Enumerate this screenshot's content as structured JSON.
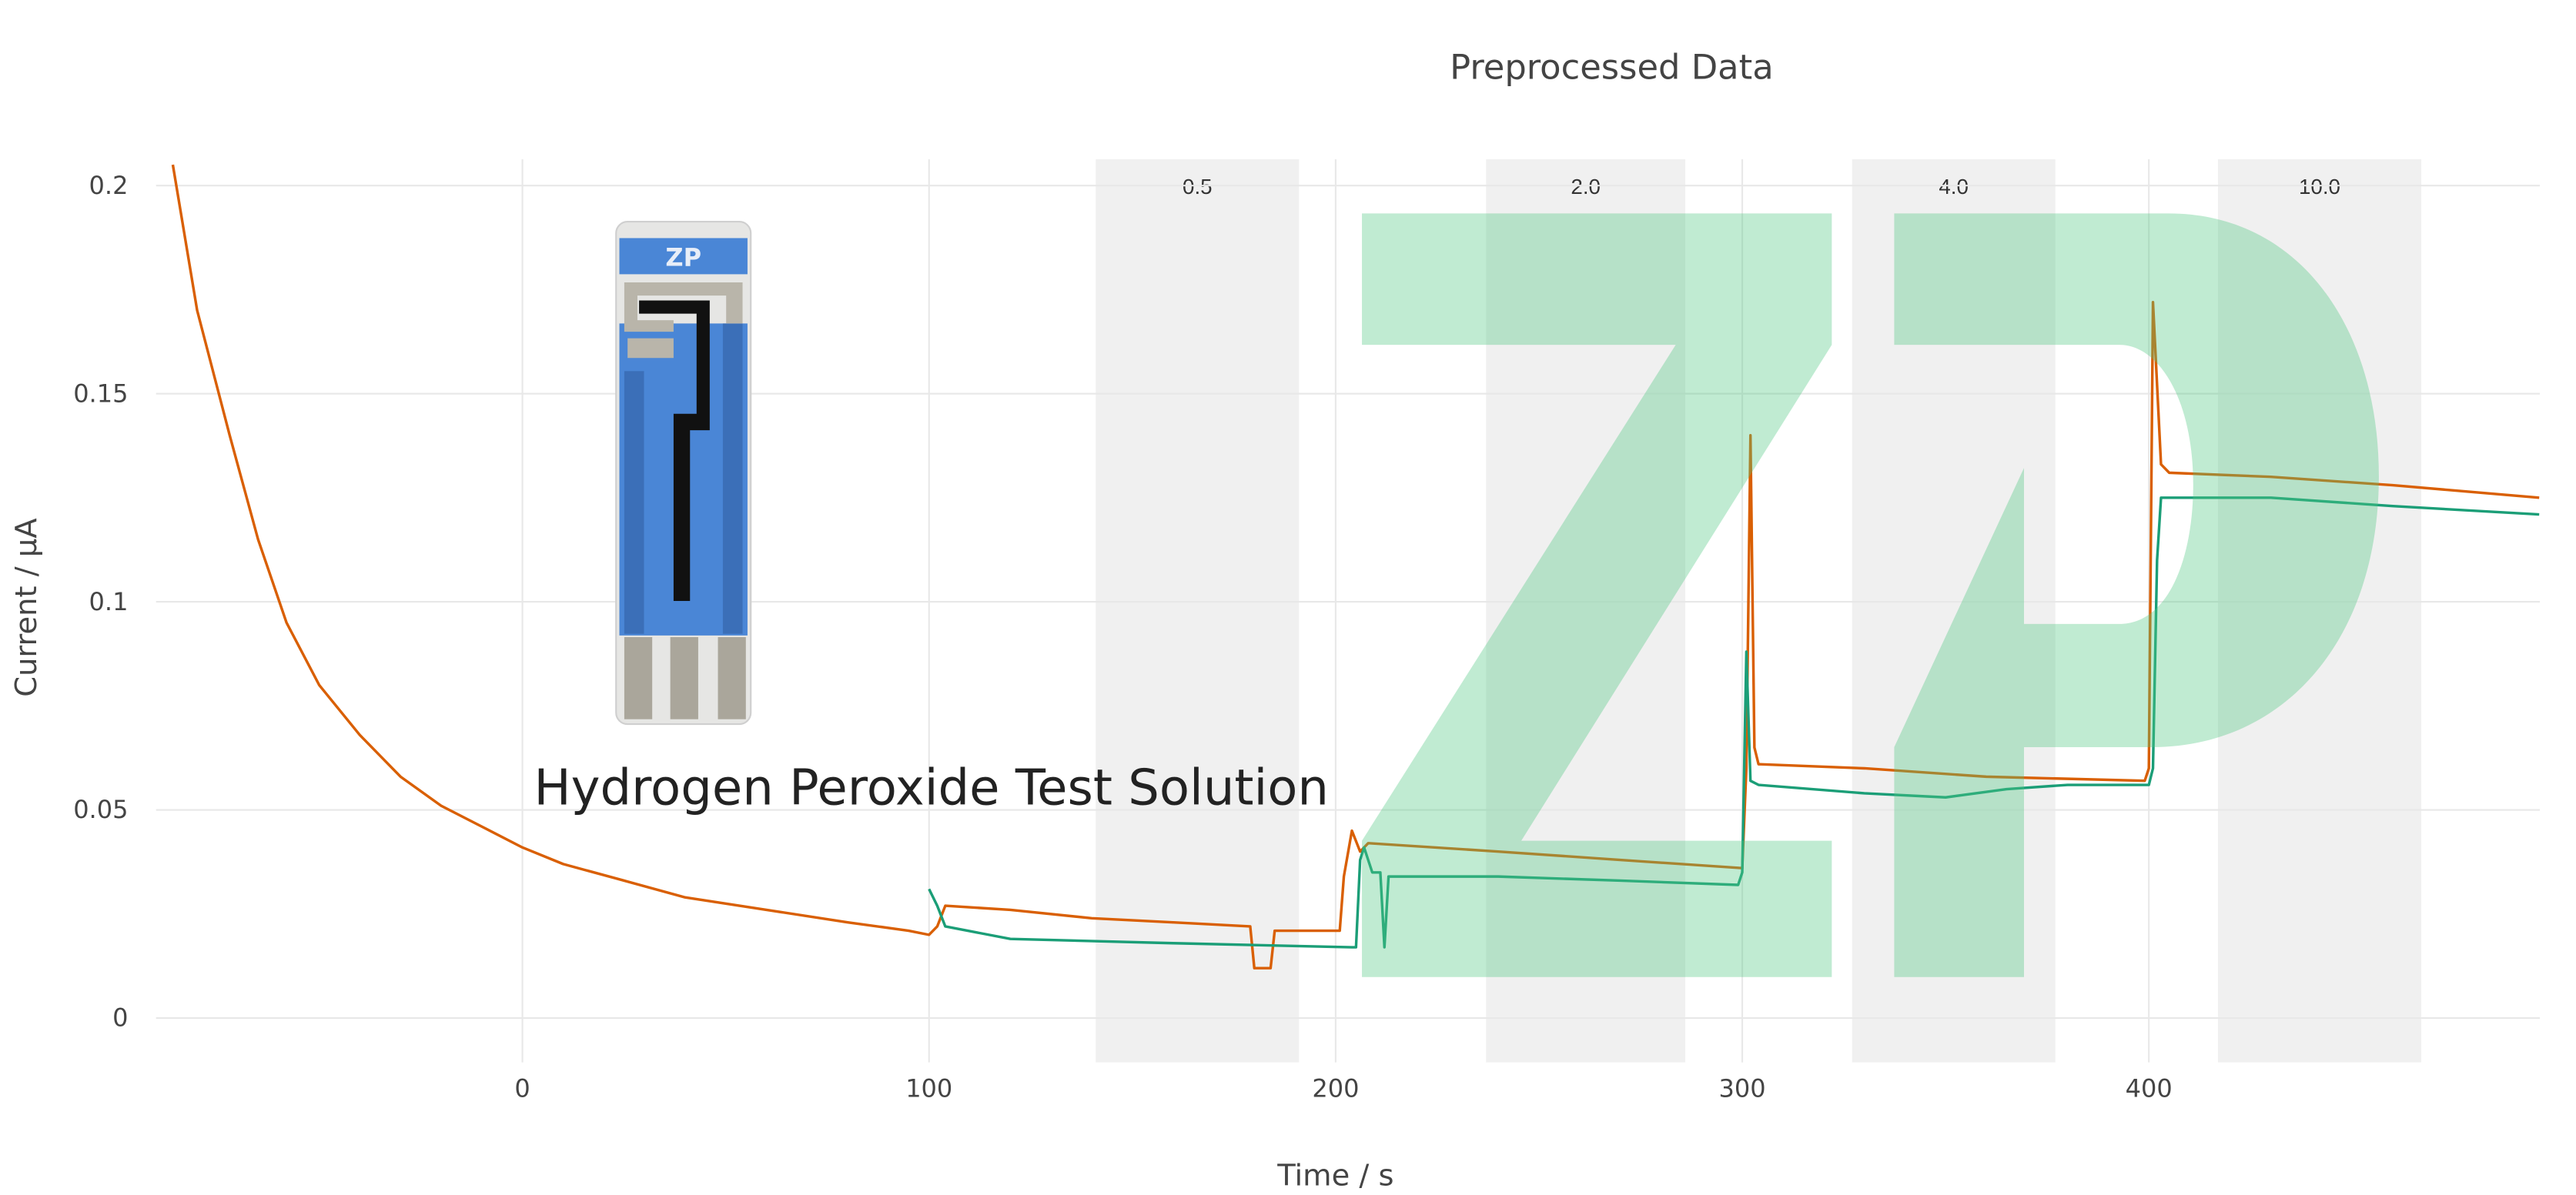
{
  "chart_data": {
    "type": "line",
    "title": "Preprocessed Data",
    "xlabel": "Time / s",
    "ylabel": "Current / µA",
    "xlim": [
      -90,
      496
    ],
    "ylim": [
      -0.01,
      0.206
    ],
    "grid": true,
    "legend": "none",
    "x_ticks": [
      0,
      100,
      200,
      300,
      400
    ],
    "x_tick_labels": [
      "0",
      "100",
      "200",
      "300",
      "400"
    ],
    "y_ticks": [
      0,
      0.05,
      0.1,
      0.15,
      0.2
    ],
    "y_tick_labels": [
      "0",
      "0.05",
      "0.1",
      "0.15",
      "0.2"
    ],
    "annotation": "Hydrogen Peroxide Test Solution",
    "shaded_bands": [
      {
        "label": "0.5",
        "x0": 141,
        "x1": 191
      },
      {
        "label": "2.0",
        "x0": 237,
        "x1": 286
      },
      {
        "label": "4.0",
        "x0": 327,
        "x1": 377
      },
      {
        "label": "10.0",
        "x0": 417,
        "x1": 467
      }
    ],
    "series": [
      {
        "color": "#d95f02",
        "points": [
          [
            -86,
            0.205
          ],
          [
            -80,
            0.17
          ],
          [
            -72,
            0.14
          ],
          [
            -65,
            0.115
          ],
          [
            -58,
            0.095
          ],
          [
            -50,
            0.08
          ],
          [
            -40,
            0.068
          ],
          [
            -30,
            0.058
          ],
          [
            -20,
            0.051
          ],
          [
            -10,
            0.046
          ],
          [
            0,
            0.041
          ],
          [
            10,
            0.037
          ],
          [
            25,
            0.033
          ],
          [
            40,
            0.029
          ],
          [
            60,
            0.026
          ],
          [
            80,
            0.023
          ],
          [
            95,
            0.021
          ],
          [
            100,
            0.02
          ],
          [
            102,
            0.022
          ],
          [
            104,
            0.027
          ],
          [
            120,
            0.026
          ],
          [
            140,
            0.024
          ],
          [
            160,
            0.023
          ],
          [
            179,
            0.022
          ],
          [
            180,
            0.012
          ],
          [
            184,
            0.012
          ],
          [
            185,
            0.021
          ],
          [
            201,
            0.021
          ],
          [
            202,
            0.034
          ],
          [
            204,
            0.045
          ],
          [
            206,
            0.04
          ],
          [
            208,
            0.042
          ],
          [
            240,
            0.04
          ],
          [
            270,
            0.038
          ],
          [
            300,
            0.036
          ],
          [
            301,
            0.06
          ],
          [
            302,
            0.14
          ],
          [
            303,
            0.065
          ],
          [
            304,
            0.061
          ],
          [
            330,
            0.06
          ],
          [
            360,
            0.058
          ],
          [
            399,
            0.057
          ],
          [
            400,
            0.06
          ],
          [
            401,
            0.172
          ],
          [
            403,
            0.133
          ],
          [
            405,
            0.131
          ],
          [
            430,
            0.13
          ],
          [
            460,
            0.128
          ],
          [
            496,
            0.125
          ]
        ]
      },
      {
        "color": "#1b9e77",
        "points": [
          [
            100,
            0.031
          ],
          [
            102,
            0.027
          ],
          [
            104,
            0.022
          ],
          [
            120,
            0.019
          ],
          [
            160,
            0.018
          ],
          [
            204,
            0.017
          ],
          [
            205,
            0.017
          ],
          [
            206,
            0.038
          ],
          [
            207,
            0.041
          ],
          [
            209,
            0.035
          ],
          [
            211,
            0.035
          ],
          [
            212,
            0.017
          ],
          [
            213,
            0.034
          ],
          [
            240,
            0.034
          ],
          [
            270,
            0.033
          ],
          [
            299,
            0.032
          ],
          [
            300,
            0.035
          ],
          [
            301,
            0.088
          ],
          [
            302,
            0.057
          ],
          [
            304,
            0.056
          ],
          [
            330,
            0.054
          ],
          [
            350,
            0.053
          ],
          [
            365,
            0.055
          ],
          [
            380,
            0.056
          ],
          [
            400,
            0.056
          ],
          [
            401,
            0.06
          ],
          [
            402,
            0.11
          ],
          [
            403,
            0.125
          ],
          [
            430,
            0.125
          ],
          [
            460,
            0.123
          ],
          [
            496,
            0.121
          ]
        ]
      }
    ]
  },
  "watermark": {
    "text": "ZP",
    "color": "#50c882"
  },
  "electrode_image": {
    "logo_text": "ZP"
  }
}
